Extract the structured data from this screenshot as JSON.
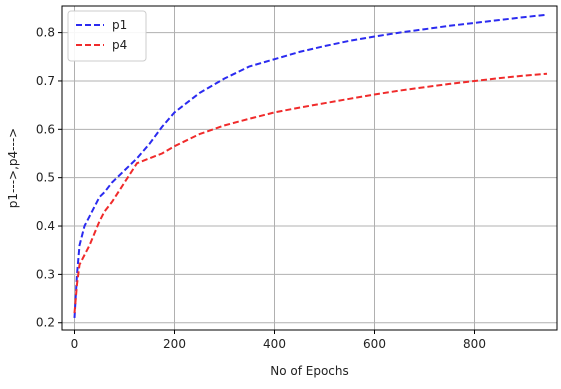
{
  "chart_data": {
    "type": "line",
    "title": "",
    "xlabel": "No of Epochs",
    "ylabel": "p1--->,p4--->",
    "xlim": [
      -25,
      965
    ],
    "ylim": [
      0.185,
      0.855
    ],
    "xticks": [
      0,
      200,
      400,
      600,
      800
    ],
    "yticks": [
      0.2,
      0.3,
      0.4,
      0.5,
      0.6,
      0.7,
      0.8
    ],
    "xtick_labels": [
      "0",
      "200",
      "400",
      "600",
      "800"
    ],
    "ytick_labels": [
      "0.2",
      "0.3",
      "0.4",
      "0.5",
      "0.6",
      "0.7",
      "0.8"
    ],
    "grid": true,
    "legend_position": "top-left",
    "series": [
      {
        "name": "p1",
        "color": "#2b2bf0",
        "line_style": "dashed",
        "x": [
          0,
          5,
          10,
          20,
          30,
          40,
          50,
          60,
          75,
          100,
          125,
          150,
          175,
          200,
          250,
          300,
          350,
          400,
          450,
          500,
          550,
          600,
          650,
          700,
          750,
          800,
          850,
          900,
          945
        ],
        "y": [
          0.21,
          0.3,
          0.36,
          0.4,
          0.42,
          0.44,
          0.46,
          0.47,
          0.49,
          0.515,
          0.54,
          0.57,
          0.605,
          0.635,
          0.675,
          0.705,
          0.73,
          0.745,
          0.76,
          0.772,
          0.783,
          0.792,
          0.8,
          0.807,
          0.814,
          0.82,
          0.826,
          0.832,
          0.837
        ]
      },
      {
        "name": "p4",
        "color": "#f02b2b",
        "line_style": "dashed",
        "x": [
          0,
          5,
          10,
          20,
          30,
          40,
          50,
          60,
          75,
          100,
          125,
          150,
          175,
          200,
          250,
          300,
          350,
          400,
          450,
          500,
          550,
          600,
          650,
          700,
          750,
          800,
          850,
          900,
          945
        ],
        "y": [
          0.22,
          0.28,
          0.32,
          0.34,
          0.36,
          0.385,
          0.41,
          0.43,
          0.45,
          0.49,
          0.53,
          0.54,
          0.55,
          0.565,
          0.59,
          0.608,
          0.622,
          0.635,
          0.645,
          0.654,
          0.663,
          0.672,
          0.68,
          0.687,
          0.694,
          0.7,
          0.706,
          0.711,
          0.715
        ]
      }
    ]
  }
}
